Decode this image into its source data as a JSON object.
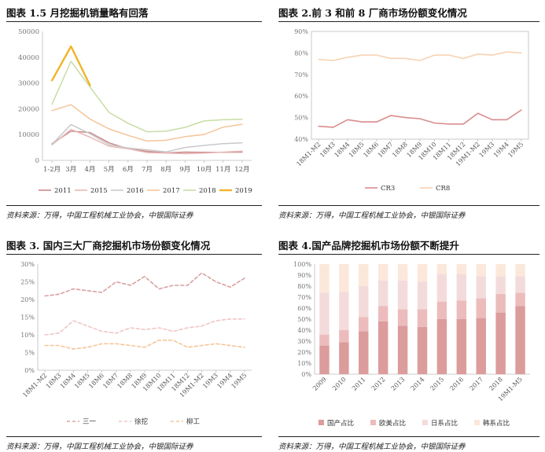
{
  "panels": [
    {
      "title": "图表 1.5 月挖掘机销量略有回落",
      "source": "资料来源：万得，中国工程机械工业协会，中银国际证券",
      "chart_data": {
        "type": "line",
        "categories": [
          "1-2月",
          "3月",
          "4月",
          "5月",
          "6月",
          "7月",
          "8月",
          "9月",
          "10月",
          "11月",
          "12月"
        ],
        "ylim": [
          0,
          50000
        ],
        "yticks": [
          0,
          10000,
          20000,
          30000,
          40000,
          50000
        ],
        "series": [
          {
            "name": "2011",
            "color": "#c98a8a",
            "width": 1.5,
            "dash": "",
            "values": [
              6500,
              11300,
              10800,
              6800,
              4500,
              3500,
              2900,
              3200,
              3100,
              3100,
              3200
            ]
          },
          {
            "name": "2015",
            "color": "#e9b8b8",
            "width": 1.5,
            "dash": "",
            "values": [
              6000,
              12000,
              9000,
              5500,
              4500,
              3000,
              2800,
              2600,
              2800,
              3200,
              3600
            ]
          },
          {
            "name": "2016",
            "color": "#c9c9c9",
            "width": 1.5,
            "dash": "",
            "values": [
              6200,
              13900,
              10300,
              6100,
              4800,
              4100,
              3300,
              5000,
              5800,
              6500,
              6800
            ]
          },
          {
            "name": "2017",
            "color": "#f5c59a",
            "width": 1.5,
            "dash": "",
            "values": [
              19300,
              21600,
              16000,
              12200,
              9700,
              7500,
              7800,
              9200,
              10000,
              12900,
              14000
            ]
          },
          {
            "name": "2018",
            "color": "#c8dca5",
            "width": 1.5,
            "dash": "",
            "values": [
              21800,
              38400,
              28400,
              18600,
              14400,
              11100,
              11300,
              12800,
              15300,
              15800,
              15900
            ]
          },
          {
            "name": "2019",
            "color": "#f0b429",
            "width": 2.4,
            "dash": "",
            "values": [
              31000,
              44200,
              29100,
              null,
              null,
              null,
              null,
              null,
              null,
              null,
              null
            ]
          }
        ]
      }
    },
    {
      "title": "图表 2.前 3 和前 8 厂商市场份额变化情况",
      "source": "资料来源：万得，中国工程机械工业协会，中银国际证券",
      "chart_data": {
        "type": "line",
        "categories": [
          "18M1-M2",
          "18M3",
          "18M4",
          "18M5",
          "18M6",
          "18M7",
          "18M8",
          "18M9",
          "18M10",
          "18M11",
          "18M12",
          "19M1-M2",
          "19M3",
          "19M4",
          "19M5"
        ],
        "ylim": [
          0.4,
          0.9
        ],
        "yticks": [
          "40%",
          "50%",
          "60%",
          "70%",
          "80%",
          "90%"
        ],
        "series": [
          {
            "name": "CR3",
            "color": "#d98c8c",
            "width": 1.6,
            "dash": "",
            "values": [
              0.46,
              0.455,
              0.49,
              0.48,
              0.48,
              0.51,
              0.5,
              0.495,
              0.475,
              0.47,
              0.47,
              0.52,
              0.49,
              0.49,
              0.535
            ]
          },
          {
            "name": "CR8",
            "color": "#f7d2b0",
            "width": 1.6,
            "dash": "",
            "values": [
              0.77,
              0.765,
              0.78,
              0.79,
              0.79,
              0.775,
              0.775,
              0.765,
              0.79,
              0.79,
              0.775,
              0.795,
              0.79,
              0.805,
              0.8
            ]
          }
        ]
      }
    },
    {
      "title": "图表 3. 国内三大厂商挖掘机市场份额变化情况",
      "source": "资料来源：万得，中国工程机械工业协会，中银国际证券",
      "chart_data": {
        "type": "line",
        "categories": [
          "18M1-M2",
          "18M3",
          "18M4",
          "18M5",
          "18M6",
          "18M7",
          "18M8",
          "18M9",
          "18M10",
          "18M11",
          "18M12",
          "19M1-M2",
          "19M3",
          "19M4",
          "19M5"
        ],
        "ylim": [
          0,
          0.3
        ],
        "yticks": [
          "0%",
          "5%",
          "10%",
          "15%",
          "20%",
          "25%",
          "30%"
        ],
        "series": [
          {
            "name": "三一",
            "color": "#d9a0a0",
            "width": 1.6,
            "dash": "4,3",
            "values": [
              0.21,
              0.215,
              0.23,
              0.225,
              0.22,
              0.25,
              0.24,
              0.265,
              0.23,
              0.24,
              0.24,
              0.275,
              0.25,
              0.235,
              0.26
            ]
          },
          {
            "name": "徐挖",
            "color": "#f0c6c6",
            "width": 1.6,
            "dash": "4,3",
            "values": [
              0.1,
              0.105,
              0.14,
              0.125,
              0.11,
              0.105,
              0.12,
              0.115,
              0.12,
              0.11,
              0.12,
              0.125,
              0.14,
              0.145,
              0.145
            ]
          },
          {
            "name": "柳工",
            "color": "#f5c69a",
            "width": 1.6,
            "dash": "4,3",
            "values": [
              0.07,
              0.07,
              0.06,
              0.065,
              0.075,
              0.075,
              0.07,
              0.065,
              0.085,
              0.085,
              0.065,
              0.07,
              0.075,
              0.07,
              0.065
            ]
          }
        ]
      }
    },
    {
      "title": "图表 4.国产品牌挖掘机市场份额不断提升",
      "source": "资料来源：万得，中国工程机械工业协会，中银国际证券",
      "chart_data": {
        "type": "bar",
        "stacked": true,
        "categories": [
          "2009",
          "2010",
          "2011",
          "2012",
          "2013",
          "2014",
          "2015",
          "2016",
          "2017",
          "2018",
          "19M1-M5"
        ],
        "ylim": [
          0,
          1
        ],
        "yticks": [
          "0%",
          "10%",
          "20%",
          "30%",
          "40%",
          "50%",
          "60%",
          "70%",
          "80%",
          "90%",
          "100%"
        ],
        "series": [
          {
            "name": "国产占比",
            "color": "#dc9c9c",
            "values": [
              0.26,
              0.29,
              0.39,
              0.48,
              0.44,
              0.43,
              0.5,
              0.5,
              0.51,
              0.56,
              0.62
            ]
          },
          {
            "name": "欧美占比",
            "color": "#ecbcbc",
            "values": [
              0.1,
              0.11,
              0.13,
              0.14,
              0.15,
              0.16,
              0.16,
              0.17,
              0.18,
              0.17,
              0.12
            ]
          },
          {
            "name": "日系占比",
            "color": "#f4dbdb",
            "values": [
              0.38,
              0.35,
              0.28,
              0.23,
              0.26,
              0.25,
              0.25,
              0.24,
              0.2,
              0.16,
              0.15
            ]
          },
          {
            "name": "韩系占比",
            "color": "#fbe8db",
            "values": [
              0.26,
              0.25,
              0.2,
              0.15,
              0.15,
              0.16,
              0.09,
              0.09,
              0.11,
              0.11,
              0.11
            ]
          }
        ]
      }
    }
  ]
}
